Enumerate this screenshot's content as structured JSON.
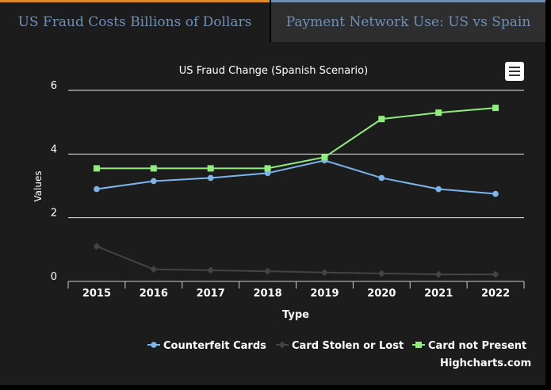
{
  "tabs": [
    {
      "label": "US Fraud Costs Billions of Dollars",
      "active": true
    },
    {
      "label": "Payment Network Use: US vs Spain",
      "active": false
    }
  ],
  "menu": {
    "icon": "hamburger-menu-icon"
  },
  "credit": "Highcharts.com",
  "colors": {
    "tab_active_border": "#e08a2a",
    "tab_text": "#6f8fb4",
    "panel_bg": "#1c1c1c"
  },
  "chart_data": {
    "type": "line",
    "title": "US Fraud Change (Spanish Scenario)",
    "xlabel": "Type",
    "ylabel": "Values",
    "categories": [
      "2015",
      "2016",
      "2017",
      "2018",
      "2019",
      "2020",
      "2021",
      "2022"
    ],
    "y_ticks": [
      "0",
      "2",
      "4",
      "6"
    ],
    "ylim": [
      0,
      6
    ],
    "grid": true,
    "legend_position": "bottom-right",
    "series": [
      {
        "name": "Counterfeit Cards",
        "color": "#7cb5ec",
        "marker": "circle",
        "values": [
          2.9,
          3.15,
          3.25,
          3.4,
          3.8,
          3.25,
          2.9,
          2.75
        ]
      },
      {
        "name": "Card Stolen or Lost",
        "color": "#434348",
        "marker": "diamond",
        "values": [
          1.1,
          0.38,
          0.35,
          0.32,
          0.28,
          0.25,
          0.22,
          0.22
        ]
      },
      {
        "name": "Card not Present",
        "color": "#90ed7d",
        "marker": "square",
        "values": [
          3.55,
          3.55,
          3.55,
          3.55,
          3.9,
          5.1,
          5.3,
          5.45
        ]
      }
    ]
  }
}
